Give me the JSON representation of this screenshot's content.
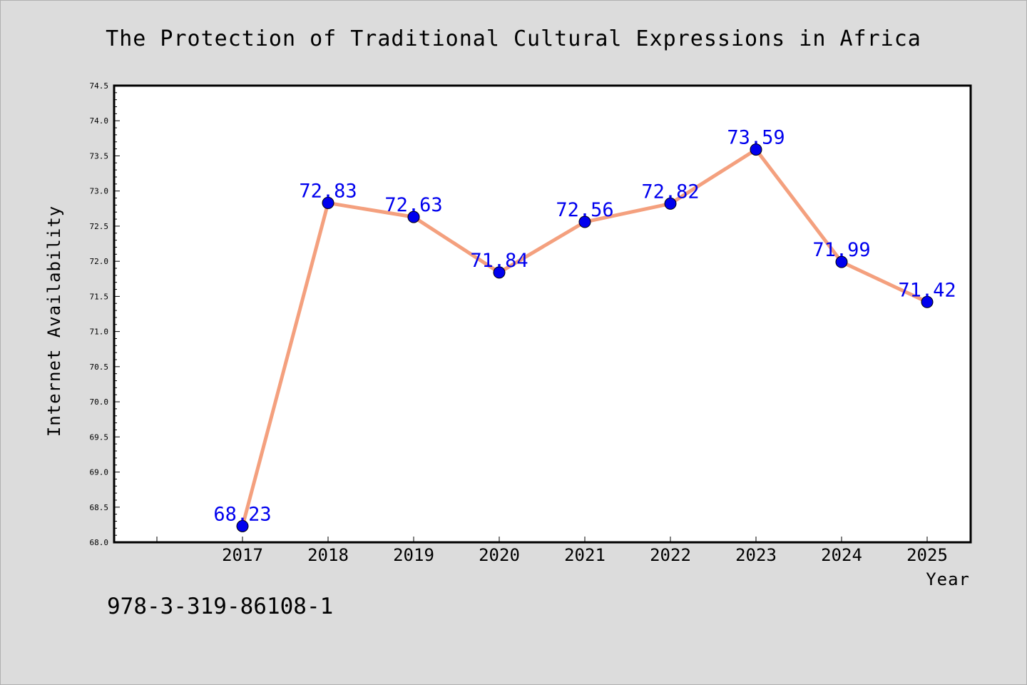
{
  "chart_data": {
    "type": "line",
    "title": "The Protection of Traditional Cultural Expressions in Africa",
    "xlabel": "Year",
    "ylabel": "Internet Availability",
    "x": [
      "2017",
      "2018",
      "2019",
      "2020",
      "2021",
      "2022",
      "2023",
      "2024",
      "2025"
    ],
    "series": [
      {
        "values": [
          68.23,
          72.83,
          72.63,
          71.84,
          72.56,
          72.82,
          73.59,
          71.99,
          71.42
        ],
        "labels": [
          "68.23",
          "72.83",
          "72.63",
          "71.84",
          "72.56",
          "72.82",
          "73.59",
          "71.99",
          "71.42"
        ],
        "line_color": "#f4a07e",
        "marker_color": "#0000ee"
      }
    ],
    "ylim": [
      68.0,
      74.5
    ],
    "yticks": [
      "68.0",
      "68.5",
      "69.0",
      "69.5",
      "70.0",
      "70.5",
      "71.0",
      "71.5",
      "72.0",
      "72.5",
      "73.0",
      "73.5",
      "74.0",
      "74.5"
    ],
    "grid": false,
    "legend": "none"
  },
  "caption": "978-3-319-86108-1"
}
